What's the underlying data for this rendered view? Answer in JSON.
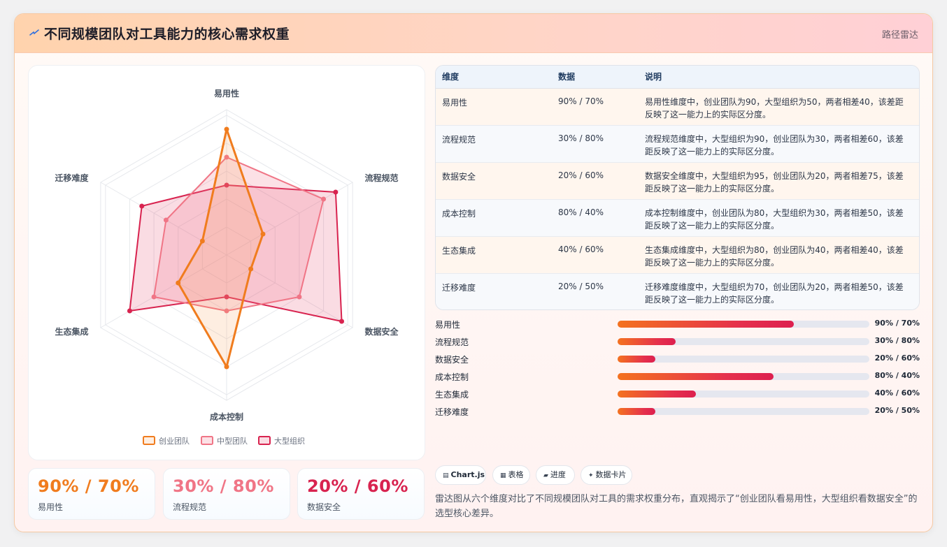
{
  "header": {
    "title": "不同规模团队对工具能力的核心需求权重",
    "route_label": "路径雷达",
    "icon": "spark-icon"
  },
  "chart_data": {
    "type": "radar",
    "axes": [
      "易用性",
      "流程规范",
      "数据安全",
      "成本控制",
      "生态集成",
      "迁移难度"
    ],
    "range": [
      0,
      100
    ],
    "series": [
      {
        "name": "创业团队",
        "color": "#f07c1e",
        "values": [
          90,
          30,
          20,
          80,
          40,
          20
        ]
      },
      {
        "name": "中型团队",
        "color": "#f07586",
        "values": [
          70,
          80,
          60,
          40,
          60,
          50
        ]
      },
      {
        "name": "大型组织",
        "color": "#d8234f",
        "values": [
          50,
          90,
          95,
          30,
          80,
          70
        ]
      }
    ],
    "legend_position": "bottom"
  },
  "stats": [
    {
      "value": "90% / 70%",
      "label": "易用性",
      "color": "#f07c1e"
    },
    {
      "value": "30% / 80%",
      "label": "流程规范",
      "color": "#f07586"
    },
    {
      "value": "20% / 60%",
      "label": "数据安全",
      "color": "#d8234f"
    }
  ],
  "table": {
    "headers": [
      "维度",
      "数据",
      "说明"
    ],
    "rows": [
      {
        "dim": "易用性",
        "data": "90% / 70%",
        "desc": "易用性维度中，创业团队为90，大型组织为50，两者相差40，该差距反映了这一能力上的实际区分度。"
      },
      {
        "dim": "流程规范",
        "data": "30% / 80%",
        "desc": "流程规范维度中，大型组织为90，创业团队为30，两者相差60，该差距反映了这一能力上的实际区分度。"
      },
      {
        "dim": "数据安全",
        "data": "20% / 60%",
        "desc": "数据安全维度中，大型组织为95，创业团队为20，两者相差75，该差距反映了这一能力上的实际区分度。"
      },
      {
        "dim": "成本控制",
        "data": "80% / 40%",
        "desc": "成本控制维度中，创业团队为80，大型组织为30，两者相差50，该差距反映了这一能力上的实际区分度。"
      },
      {
        "dim": "生态集成",
        "data": "40% / 60%",
        "desc": "生态集成维度中，大型组织为80，创业团队为40，两者相差40，该差距反映了这一能力上的实际区分度。"
      },
      {
        "dim": "迁移难度",
        "data": "20% / 50%",
        "desc": "迁移难度维度中，大型组织为70，创业团队为20，两者相差50，该差距反映了这一能力上的实际区分度。"
      }
    ]
  },
  "progress": [
    {
      "label": "易用性",
      "value_text": "90% / 70%",
      "percent": 70
    },
    {
      "label": "流程规范",
      "value_text": "30% / 80%",
      "percent": 23
    },
    {
      "label": "数据安全",
      "value_text": "20% / 60%",
      "percent": 15
    },
    {
      "label": "成本控制",
      "value_text": "80% / 40%",
      "percent": 62
    },
    {
      "label": "生态集成",
      "value_text": "40% / 60%",
      "percent": 31
    },
    {
      "label": "迁移难度",
      "value_text": "20% / 50%",
      "percent": 15
    }
  ],
  "chips": [
    {
      "icon": "▤",
      "label": "Chart.js",
      "bold": true
    },
    {
      "icon": "▦",
      "label": "表格",
      "bold": false
    },
    {
      "icon": "▰",
      "label": "进度",
      "bold": false
    },
    {
      "icon": "✦",
      "label": "数据卡片",
      "bold": false
    }
  ],
  "summary": "雷达图从六个维度对比了不同规模团队对工具的需求权重分布，直观揭示了“创业团队看易用性，大型组织看数据安全”的选型核心差异。"
}
